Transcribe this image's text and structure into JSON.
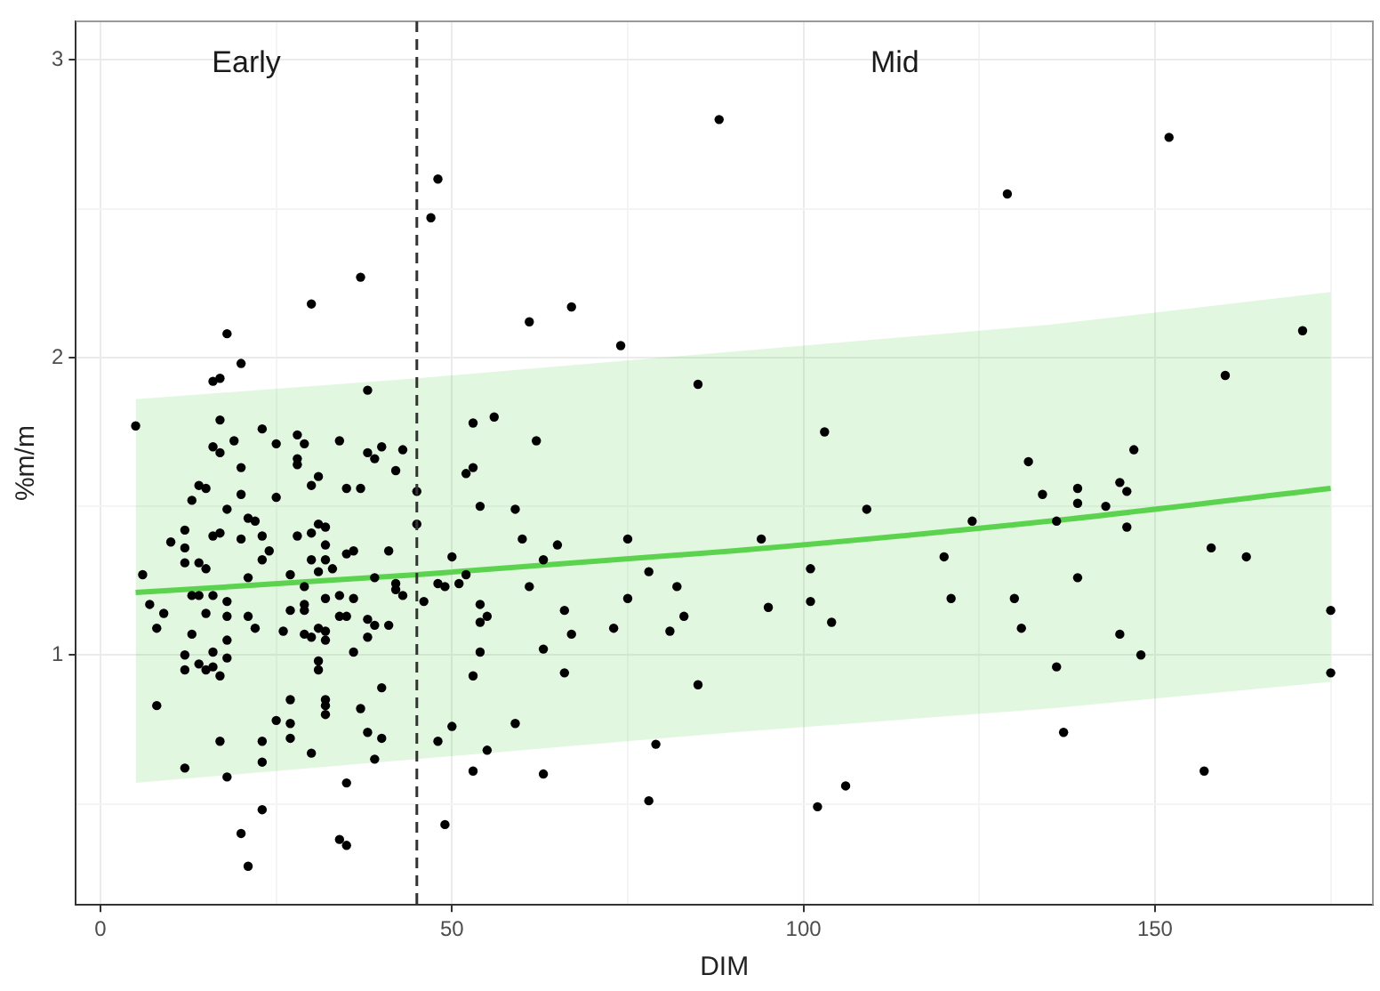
{
  "chart_data": {
    "type": "scatter",
    "xlabel": "DIM",
    "ylabel": "%m/m",
    "xlim": [
      -3.5,
      181
    ],
    "ylim": [
      0.16,
      3.13
    ],
    "xticks": [
      0,
      {
        "value": 25,
        "label": null
      },
      50,
      {
        "value": 75,
        "label": null
      },
      100,
      {
        "value": 125,
        "label": null
      },
      150,
      {
        "value": 175,
        "label": null
      }
    ],
    "yticks": [
      {
        "value": 0.5,
        "label": null
      },
      1,
      {
        "value": 1.5,
        "label": null
      },
      2,
      {
        "value": 2.5,
        "label": null
      },
      3
    ],
    "grid": true,
    "legend": false,
    "marker": "circle",
    "series": [
      {
        "type": "scatter",
        "color": "#000000",
        "x": [
          5,
          48,
          47,
          37,
          30,
          18,
          20,
          16,
          17,
          38,
          17,
          23,
          28,
          29,
          19,
          16,
          17,
          25,
          34,
          38,
          39,
          40,
          43,
          42,
          28,
          28,
          20,
          53,
          56,
          52,
          53,
          31,
          30,
          14,
          15,
          35,
          37,
          20,
          25,
          13,
          45,
          54,
          45,
          10,
          12,
          12,
          16,
          17,
          20,
          21,
          22,
          23,
          18,
          28,
          30,
          31,
          32,
          32,
          35,
          36,
          41,
          23,
          24,
          30,
          32,
          31,
          33,
          12,
          14,
          15,
          6,
          21,
          27,
          39,
          42,
          42,
          43,
          50,
          52,
          48,
          49,
          51,
          29,
          13,
          14,
          16,
          32,
          34,
          36,
          7,
          18,
          46,
          54,
          9,
          15,
          18,
          21,
          27,
          29,
          29,
          34,
          35,
          38,
          39,
          41,
          54,
          55,
          8,
          22,
          26,
          31,
          32,
          32,
          29,
          30,
          38,
          13,
          18,
          12,
          16,
          18,
          36,
          54,
          31,
          31,
          12,
          14,
          15,
          16,
          17,
          53,
          40,
          8,
          27,
          32,
          32,
          32,
          37,
          25,
          27,
          27,
          38,
          40,
          50,
          48,
          55,
          17,
          23,
          23,
          30,
          39,
          12,
          18,
          35,
          53,
          23,
          49,
          20,
          34,
          35,
          21,
          88,
          61,
          67,
          74,
          85,
          62,
          103,
          59,
          60,
          65,
          63,
          75,
          94,
          109,
          78,
          61,
          82,
          101,
          75,
          66,
          67,
          73,
          81,
          83,
          95,
          101,
          104,
          63,
          66,
          85,
          59,
          79,
          63,
          78,
          102,
          106,
          152,
          129,
          171,
          160,
          147,
          132,
          134,
          139,
          145,
          146,
          139,
          143,
          124,
          136,
          146,
          120,
          158,
          163,
          139,
          121,
          130,
          131,
          145,
          148,
          175,
          175,
          136,
          137,
          157
        ],
        "values": [
          1.77,
          2.6,
          2.47,
          2.27,
          2.18,
          2.08,
          1.98,
          1.92,
          1.93,
          1.89,
          1.79,
          1.76,
          1.74,
          1.71,
          1.72,
          1.7,
          1.68,
          1.71,
          1.72,
          1.68,
          1.66,
          1.7,
          1.69,
          1.62,
          1.66,
          1.64,
          1.63,
          1.78,
          1.8,
          1.61,
          1.63,
          1.6,
          1.57,
          1.57,
          1.56,
          1.56,
          1.56,
          1.54,
          1.53,
          1.52,
          1.55,
          1.5,
          1.44,
          1.38,
          1.42,
          1.36,
          1.4,
          1.41,
          1.39,
          1.46,
          1.45,
          1.4,
          1.49,
          1.4,
          1.41,
          1.44,
          1.43,
          1.37,
          1.34,
          1.35,
          1.35,
          1.32,
          1.35,
          1.32,
          1.32,
          1.28,
          1.29,
          1.31,
          1.31,
          1.29,
          1.27,
          1.26,
          1.27,
          1.26,
          1.24,
          1.22,
          1.2,
          1.33,
          1.27,
          1.24,
          1.23,
          1.24,
          1.23,
          1.2,
          1.2,
          1.2,
          1.19,
          1.2,
          1.19,
          1.17,
          1.18,
          1.18,
          1.17,
          1.14,
          1.14,
          1.13,
          1.13,
          1.15,
          1.17,
          1.15,
          1.13,
          1.13,
          1.12,
          1.1,
          1.1,
          1.11,
          1.13,
          1.09,
          1.09,
          1.08,
          1.09,
          1.08,
          1.05,
          1.07,
          1.06,
          1.06,
          1.07,
          1.05,
          1.0,
          1.01,
          0.99,
          1.01,
          1.01,
          0.98,
          0.95,
          0.95,
          0.97,
          0.95,
          0.96,
          0.93,
          0.93,
          0.89,
          0.83,
          0.85,
          0.85,
          0.83,
          0.8,
          0.82,
          0.78,
          0.77,
          0.72,
          0.74,
          0.72,
          0.76,
          0.71,
          0.68,
          0.71,
          0.71,
          0.64,
          0.67,
          0.65,
          0.62,
          0.59,
          0.57,
          0.61,
          0.48,
          0.43,
          0.4,
          0.38,
          0.36,
          0.29,
          2.8,
          2.12,
          2.17,
          2.04,
          1.91,
          1.72,
          1.75,
          1.49,
          1.39,
          1.37,
          1.32,
          1.39,
          1.39,
          1.49,
          1.28,
          1.23,
          1.23,
          1.29,
          1.19,
          1.15,
          1.07,
          1.09,
          1.08,
          1.13,
          1.16,
          1.18,
          1.11,
          1.02,
          0.94,
          0.9,
          0.77,
          0.7,
          0.6,
          0.51,
          0.49,
          0.56,
          2.74,
          2.55,
          2.09,
          1.94,
          1.69,
          1.65,
          1.54,
          1.56,
          1.58,
          1.55,
          1.51,
          1.5,
          1.45,
          1.45,
          1.43,
          1.33,
          1.36,
          1.33,
          1.26,
          1.19,
          1.19,
          1.09,
          1.07,
          1.0,
          1.15,
          0.94,
          0.96,
          0.74,
          0.61
        ]
      },
      {
        "type": "line",
        "color": "#5cd34f",
        "marker": "none",
        "x": [
          5,
          45,
          90,
          135,
          175
        ],
        "values": [
          1.21,
          1.27,
          1.35,
          1.45,
          1.56
        ],
        "lower": [
          0.57,
          0.65,
          0.74,
          0.82,
          0.91
        ],
        "upper": [
          1.86,
          1.93,
          2.02,
          2.11,
          2.22
        ]
      }
    ],
    "ref_lines": [
      {
        "axis": "x",
        "value": 45,
        "color": "#333333",
        "line_style": "dashed"
      }
    ],
    "annotations": [
      "Early",
      "Mid"
    ]
  }
}
